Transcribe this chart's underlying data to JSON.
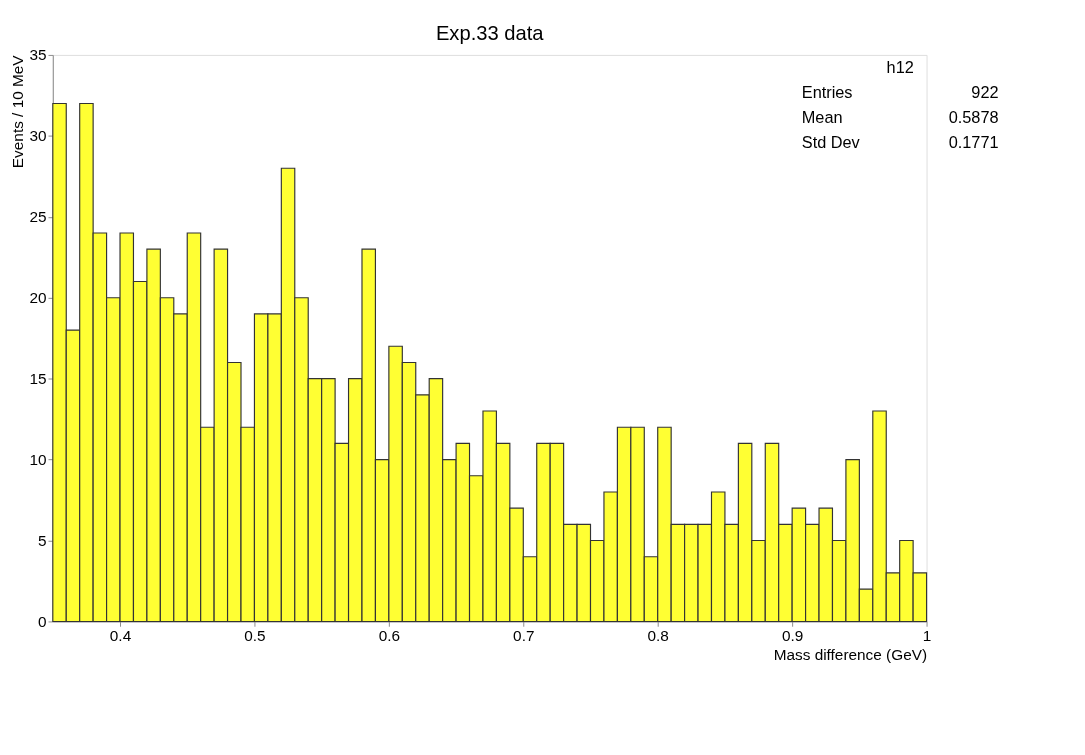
{
  "chart_data": {
    "type": "histogram",
    "title": "Exp.33 data",
    "xlabel": "Mass difference (GeV)",
    "ylabel": "Events / 10 MeV",
    "bins": [
      0.35,
      0.36,
      0.37,
      0.38,
      0.39,
      0.4,
      0.41,
      0.42,
      0.43,
      0.44,
      0.45,
      0.46,
      0.47,
      0.48,
      0.49,
      0.5,
      0.51,
      0.52,
      0.53,
      0.54,
      0.55,
      0.56,
      0.57,
      0.58,
      0.59,
      0.6,
      0.61,
      0.62,
      0.63,
      0.64,
      0.65,
      0.66,
      0.67,
      0.68,
      0.69,
      0.7,
      0.71,
      0.72,
      0.73,
      0.74,
      0.75,
      0.76,
      0.77,
      0.78,
      0.79,
      0.8,
      0.81,
      0.82,
      0.83,
      0.84,
      0.85,
      0.86,
      0.87,
      0.88,
      0.89,
      0.9,
      0.91,
      0.92,
      0.93,
      0.94,
      0.95,
      0.96,
      0.97,
      0.98,
      0.99,
      1.0
    ],
    "values": [
      32,
      18,
      32,
      24,
      20,
      24,
      21,
      23,
      20,
      19,
      24,
      12,
      23,
      16,
      12,
      19,
      19,
      28,
      20,
      15,
      15,
      11,
      15,
      23,
      10,
      17,
      16,
      14,
      15,
      10,
      11,
      9,
      13,
      11,
      7,
      4,
      11,
      11,
      6,
      6,
      5,
      8,
      12,
      12,
      4,
      12,
      6,
      6,
      6,
      8,
      6,
      11,
      5,
      11,
      6,
      7,
      6,
      7,
      5,
      10,
      2,
      13,
      3,
      5,
      3
    ],
    "color": "#ffff33",
    "xlim": [
      0.35,
      1.0
    ],
    "xticks": [
      0.4,
      0.5,
      0.6,
      0.7,
      0.8,
      0.9,
      1
    ],
    "ylim": [
      0,
      35
    ],
    "yticks": [
      0,
      5,
      10,
      15,
      20,
      25,
      30,
      35
    ],
    "grid": false,
    "annotations": [
      "h12",
      "Entries",
      "922",
      "Mean",
      "0.5878",
      "Std Dev",
      "0.1771"
    ]
  }
}
